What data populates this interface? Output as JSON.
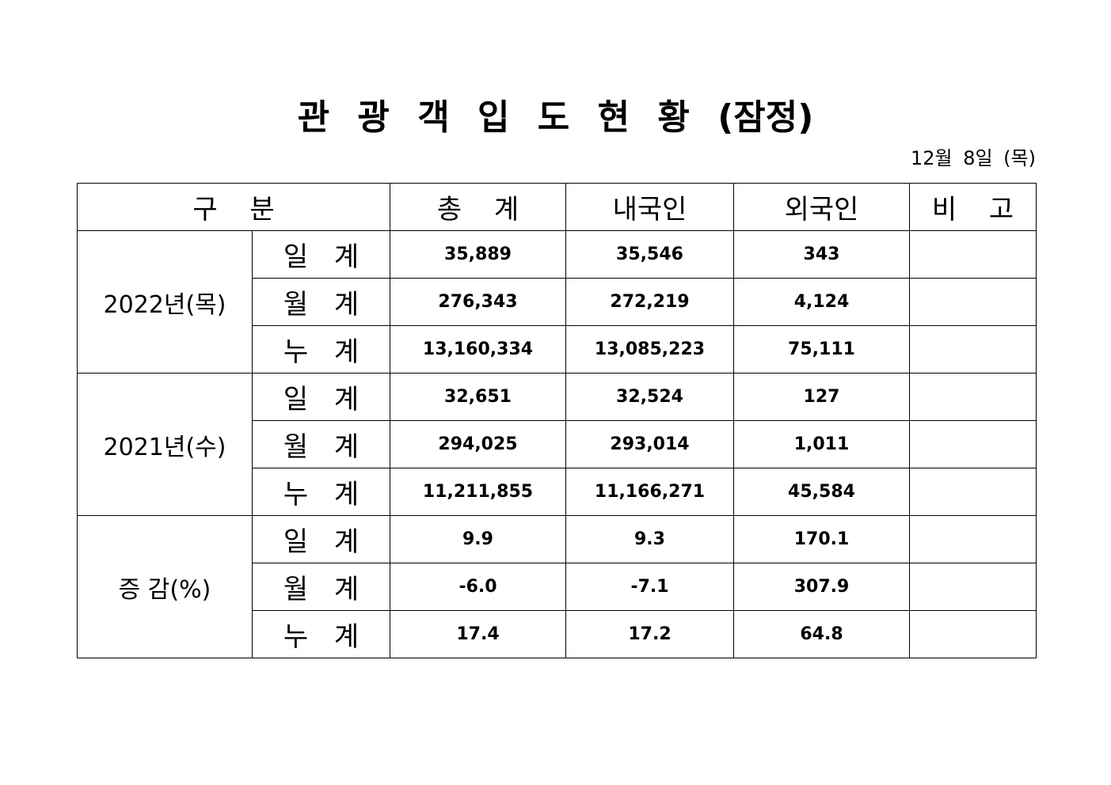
{
  "header": {
    "title": "관 광 객 입 도 현 황 (잠정)",
    "date": "12월 8일 (목)"
  },
  "table": {
    "columns": [
      "구 분",
      "총 계",
      "내국인",
      "외국인",
      "비 고"
    ],
    "groups": [
      {
        "label": "2022년(목)",
        "rows": [
          {
            "label": "일 계",
            "values": [
              "35,889",
              "35,546",
              "343"
            ]
          },
          {
            "label": "월 계",
            "values": [
              "276,343",
              "272,219",
              "4,124"
            ]
          },
          {
            "label": "누 계",
            "values": [
              "13,160,334",
              "13,085,223",
              "75,111"
            ]
          }
        ]
      },
      {
        "label": "2021년(수)",
        "rows": [
          {
            "label": "일 계",
            "values": [
              "32,651",
              "32,524",
              "127"
            ]
          },
          {
            "label": "월 계",
            "values": [
              "294,025",
              "293,014",
              "1,011"
            ]
          },
          {
            "label": "누 계",
            "values": [
              "11,211,855",
              "11,166,271",
              "45,584"
            ]
          }
        ]
      },
      {
        "label": "증 감(%)",
        "rows": [
          {
            "label": "일 계",
            "values": [
              "9.9",
              "9.3",
              "170.1"
            ]
          },
          {
            "label": "월 계",
            "values": [
              "-6.0",
              "-7.1",
              "307.9"
            ]
          },
          {
            "label": "누 계",
            "values": [
              "17.4",
              "17.2",
              "64.8"
            ]
          }
        ]
      }
    ]
  }
}
